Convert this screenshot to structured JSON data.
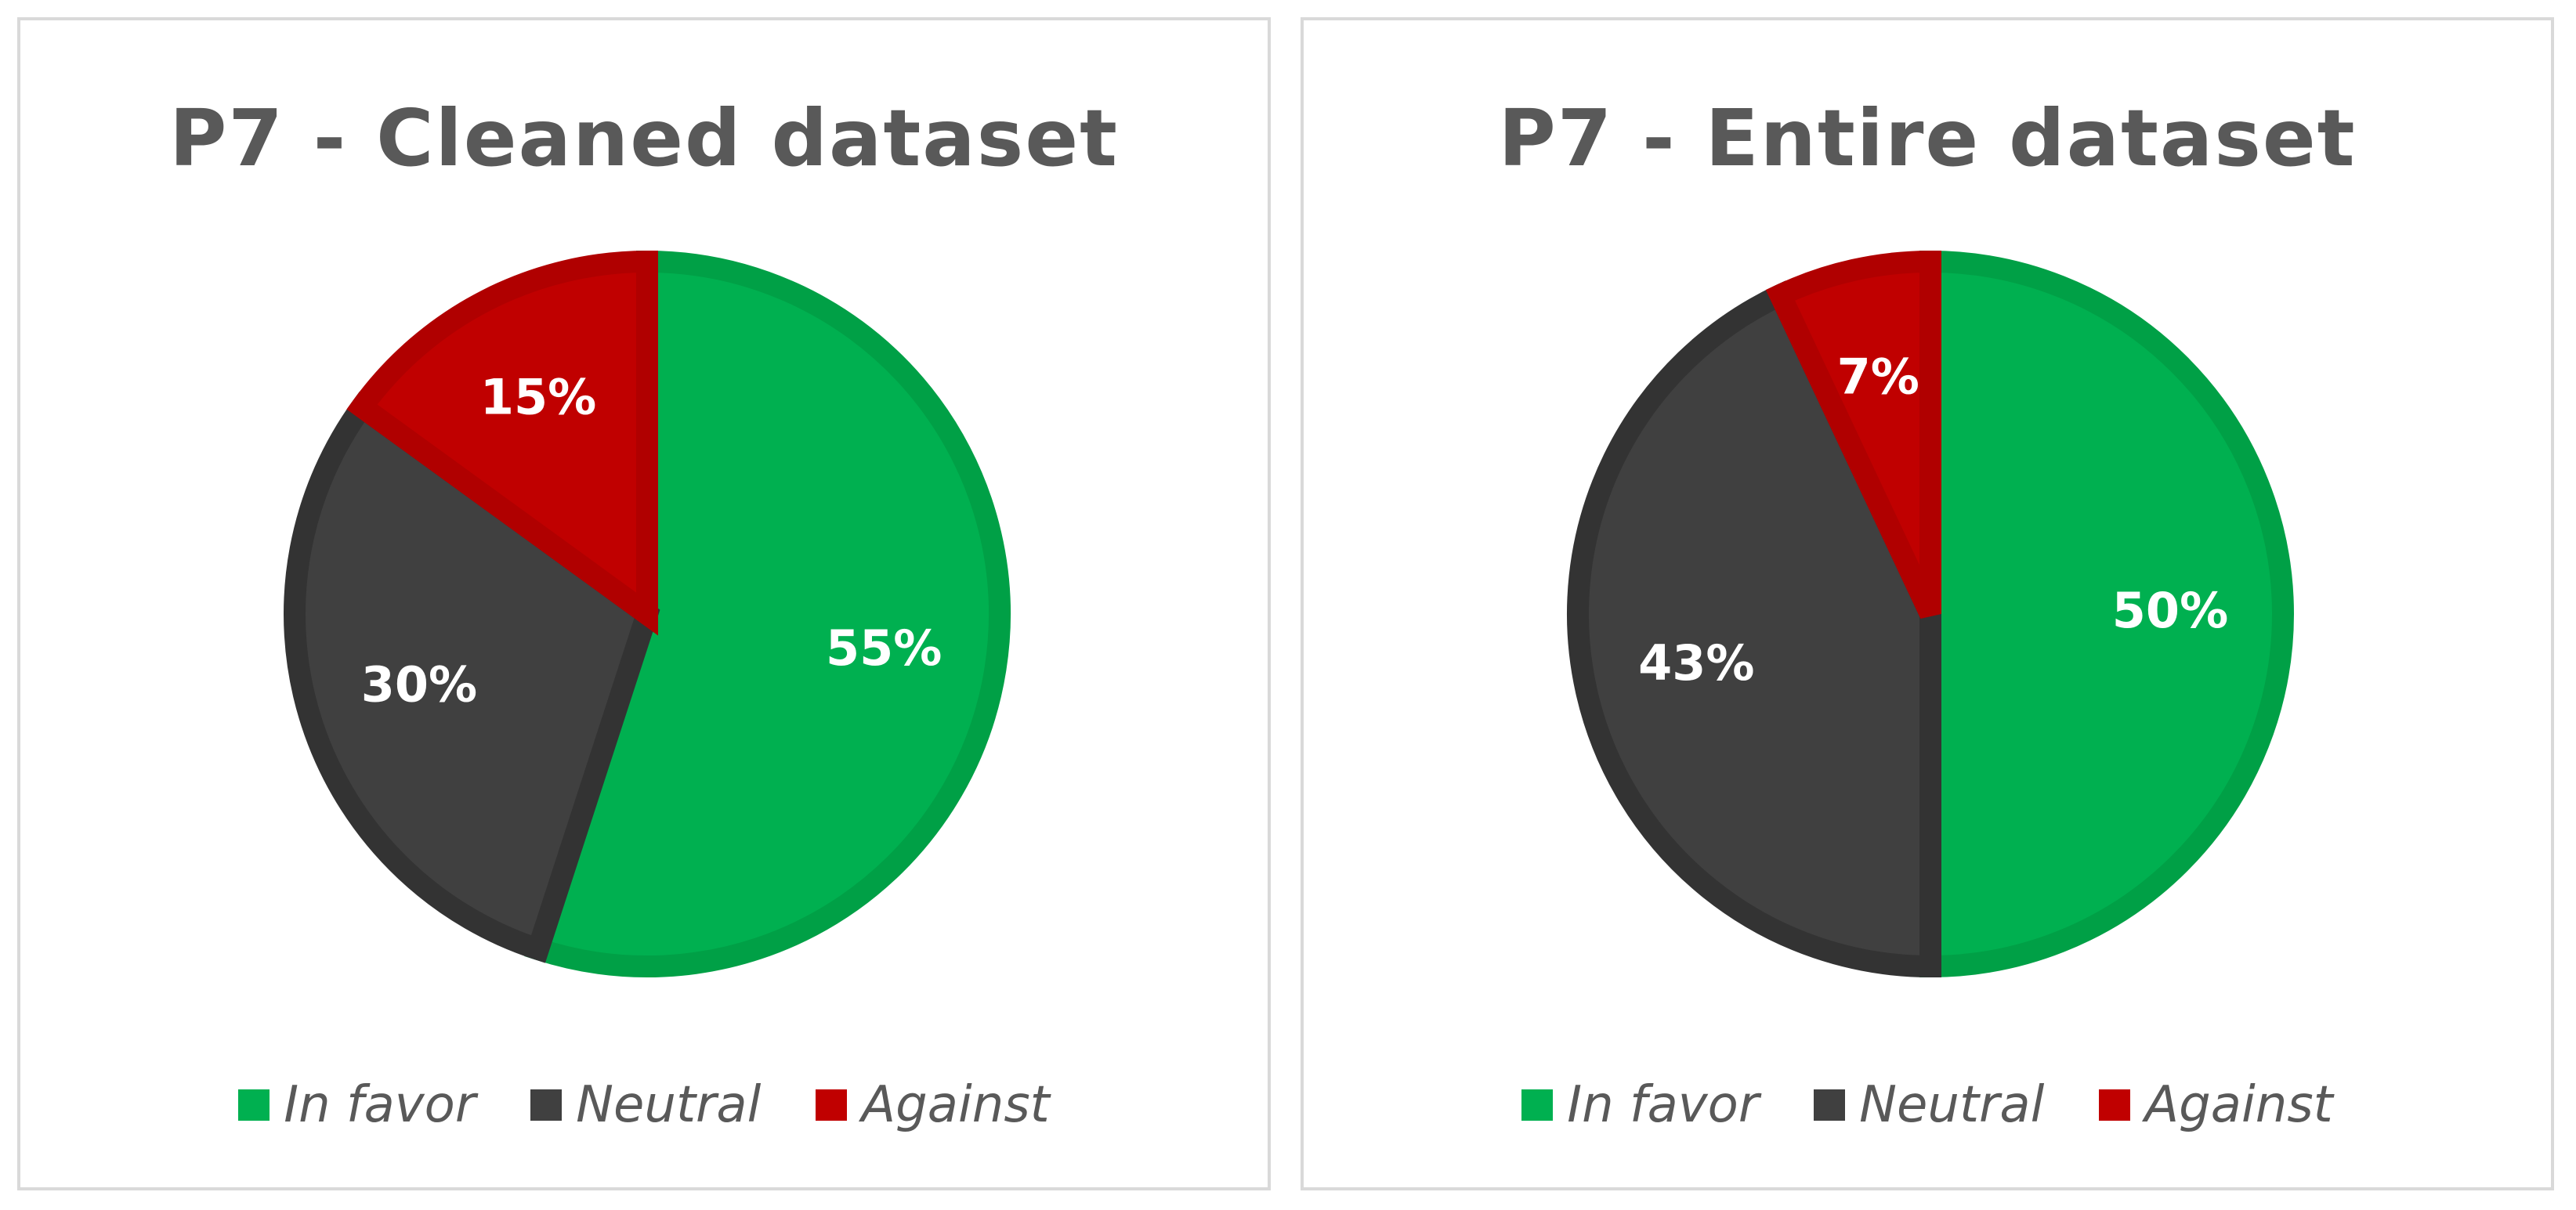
{
  "chart_data": [
    {
      "type": "pie",
      "title": "P7 - Cleaned dataset",
      "categories": [
        "In favor",
        "Neutral",
        "Against"
      ],
      "values": [
        55,
        30,
        15
      ],
      "labels": [
        "55%",
        "30%",
        "15%"
      ],
      "colors": [
        "#00b050",
        "#404040",
        "#c00000"
      ],
      "border_colors": [
        "#00a046",
        "#333333",
        "#b00000"
      ],
      "legend_position": "bottom"
    },
    {
      "type": "pie",
      "title": "P7 - Entire dataset",
      "categories": [
        "In favor",
        "Neutral",
        "Against"
      ],
      "values": [
        50,
        43,
        7
      ],
      "labels": [
        "50%",
        "43%",
        "7%"
      ],
      "colors": [
        "#00b050",
        "#404040",
        "#c00000"
      ],
      "border_colors": [
        "#00a046",
        "#333333",
        "#b00000"
      ],
      "legend_position": "bottom"
    }
  ]
}
